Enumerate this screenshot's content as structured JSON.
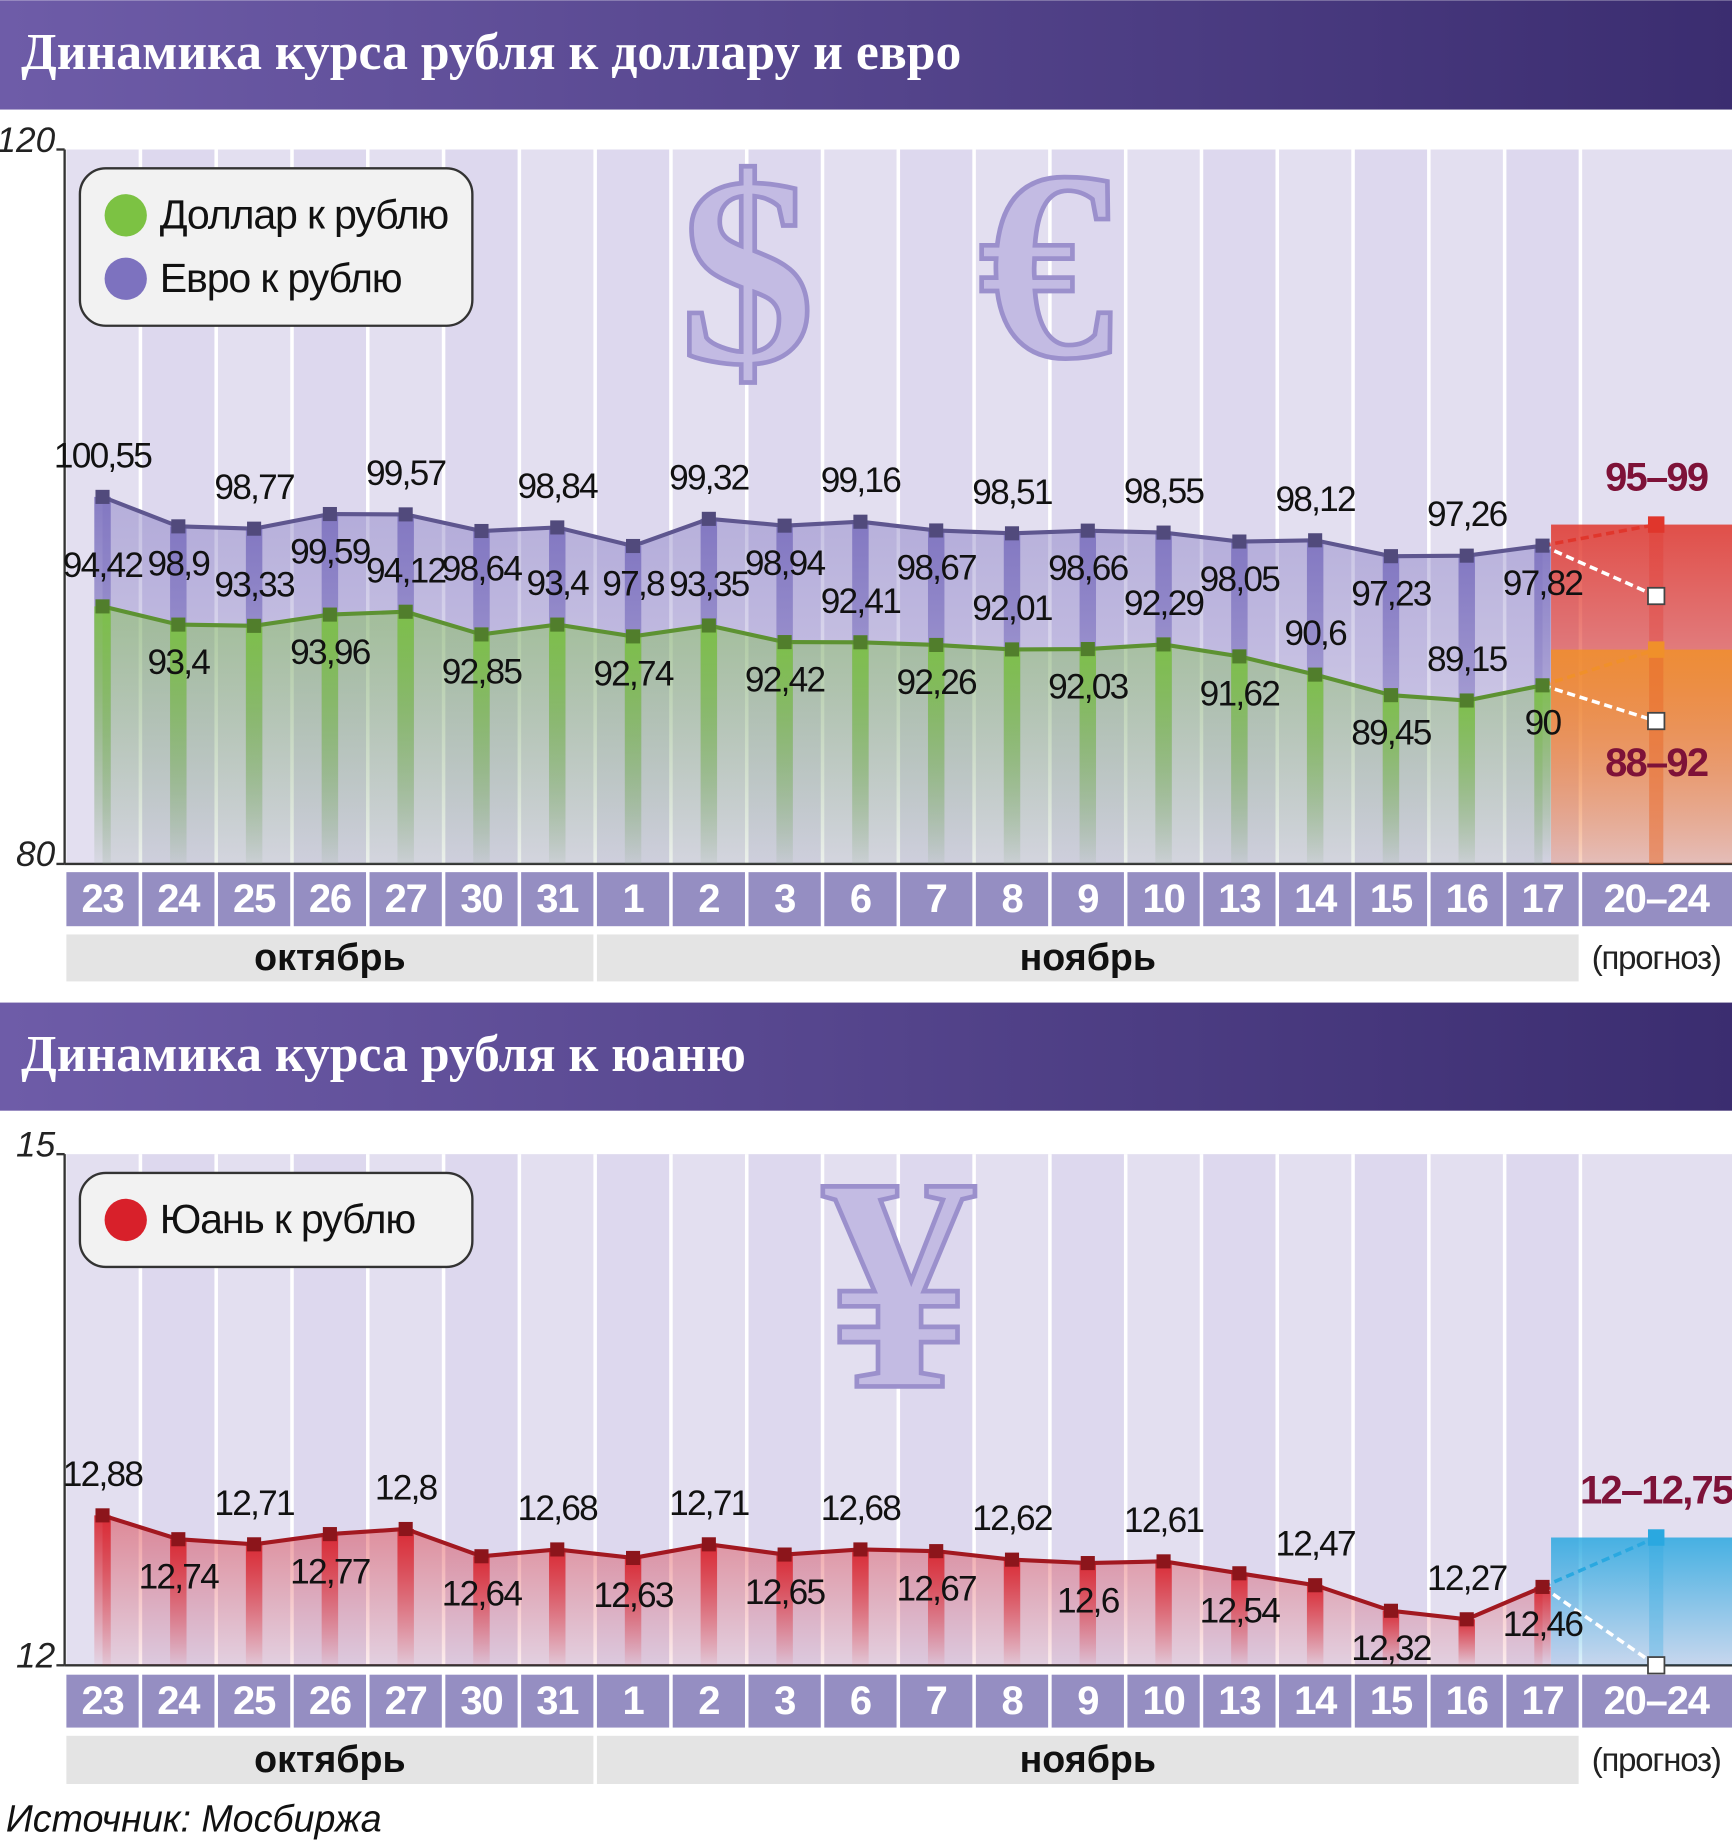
{
  "chart_data": [
    {
      "type": "line",
      "title": "Динамика курса рубля к доллару и евро",
      "categories": [
        "23",
        "24",
        "25",
        "26",
        "27",
        "30",
        "31",
        "1",
        "2",
        "3",
        "6",
        "7",
        "8",
        "9",
        "10",
        "13",
        "14",
        "15",
        "16",
        "17"
      ],
      "series": [
        {
          "name": "Доллар к рублю",
          "color": "#7cc243",
          "values": [
            94.42,
            93.4,
            93.33,
            93.96,
            94.12,
            92.85,
            93.4,
            92.74,
            93.35,
            92.42,
            92.41,
            92.26,
            92.01,
            92.03,
            92.29,
            91.62,
            90.6,
            89.45,
            89.15,
            90
          ],
          "value_labels": [
            "94,42",
            "93,4",
            "93,33",
            "93,96",
            "94,12",
            "92,85",
            "93,4",
            "92,74",
            "93,35",
            "92,42",
            "92,41",
            "92,26",
            "92,01",
            "92,03",
            "92,29",
            "91,62",
            "90,6",
            "89,45",
            "89,15",
            "90"
          ],
          "forecast": {
            "low": 88,
            "high": 92,
            "label": "88–92",
            "color": "#f0902a"
          }
        },
        {
          "name": "Евро к рублю",
          "color": "#7d72bf",
          "values": [
            100.55,
            98.9,
            98.77,
            99.59,
            99.57,
            98.64,
            98.84,
            97.8,
            99.32,
            98.94,
            99.16,
            98.67,
            98.51,
            98.66,
            98.55,
            98.05,
            98.12,
            97.23,
            97.26,
            97.82
          ],
          "value_labels": [
            "100,55",
            "98,9",
            "98,77",
            "99,59",
            "99,57",
            "98,64",
            "98,84",
            "97,8",
            "99,32",
            "98,94",
            "99,16",
            "98,67",
            "98,51",
            "98,66",
            "98,55",
            "98,05",
            "98,12",
            "97,23",
            "97,26",
            "97,82"
          ],
          "forecast": {
            "low": 95,
            "high": 99,
            "label": "95–99",
            "color": "#e0362c"
          }
        }
      ],
      "forecast_category": "20–24",
      "forecast_note": "(прогноз)",
      "months": [
        "октябрь",
        "ноябрь"
      ],
      "ylim": [
        80,
        120
      ],
      "yticks": [
        80,
        120
      ],
      "symbols": [
        "$",
        "€"
      ]
    },
    {
      "type": "line",
      "title": "Динамика курса рубля к юаню",
      "categories": [
        "23",
        "24",
        "25",
        "26",
        "27",
        "30",
        "31",
        "1",
        "2",
        "3",
        "6",
        "7",
        "8",
        "9",
        "10",
        "13",
        "14",
        "15",
        "16",
        "17"
      ],
      "series": [
        {
          "name": "Юань к рублю",
          "color": "#d8202a",
          "values": [
            12.88,
            12.74,
            12.71,
            12.77,
            12.8,
            12.64,
            12.68,
            12.63,
            12.71,
            12.65,
            12.68,
            12.67,
            12.62,
            12.6,
            12.61,
            12.54,
            12.47,
            12.32,
            12.27,
            12.46
          ],
          "value_labels": [
            "12,88",
            "12,74",
            "12,71",
            "12,77",
            "12,8",
            "12,64",
            "12,68",
            "12,63",
            "12,71",
            "12,65",
            "12,68",
            "12,67",
            "12,62",
            "12,6",
            "12,61",
            "12,54",
            "12,47",
            "12,32",
            "12,27",
            "12,46"
          ],
          "forecast": {
            "low": 12,
            "high": 12.75,
            "label": "12–12,75",
            "color": "#2aa8e0"
          }
        }
      ],
      "forecast_category": "20–24",
      "forecast_note": "(прогноз)",
      "months": [
        "октябрь",
        "ноябрь"
      ],
      "ylim": [
        12,
        15
      ],
      "yticks": [
        12,
        15
      ],
      "symbols": [
        "¥"
      ]
    }
  ],
  "source": "Источник: Мосбиржа"
}
